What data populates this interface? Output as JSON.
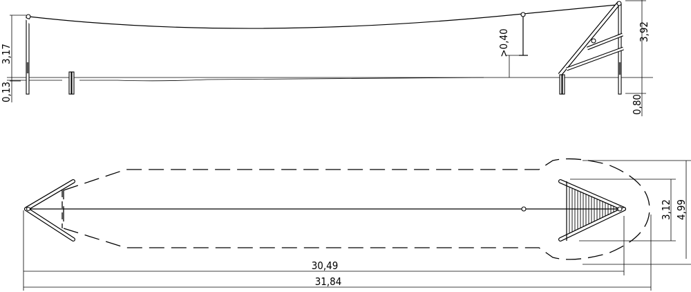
{
  "elevation": {
    "dim_left_height": "3,17",
    "dim_left_depth": "0,13",
    "dim_seat_clearance": ">0,40",
    "dim_right_height": "3,92",
    "dim_right_depth": "0,80"
  },
  "plan": {
    "dim_ladder_width": "3,12",
    "dim_area_width": "4,99",
    "dim_cable_length": "30,49",
    "dim_total_length": "31,84"
  }
}
